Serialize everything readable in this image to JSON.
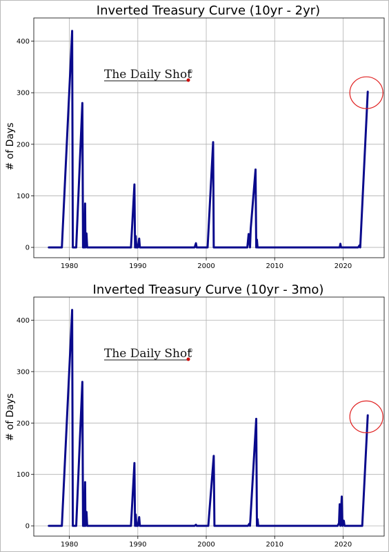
{
  "brand": {
    "logo_text": "The Daily Shot",
    "logo_mark": "®"
  },
  "colors": {
    "line": "#0a0a8c",
    "highlight": "#e02020",
    "logo_dot": "#cc0000"
  },
  "chart_data": [
    {
      "type": "line",
      "title": "Inverted Treasury Curve (10yr - 2yr)",
      "xlabel": "",
      "ylabel": "# of Days",
      "xlim": [
        1974.8,
        2026
      ],
      "ylim": [
        -20,
        445
      ],
      "xticks": [
        1980,
        1990,
        2000,
        2010,
        2020
      ],
      "yticks": [
        0,
        100,
        200,
        300,
        400
      ],
      "grid": true,
      "highlight": {
        "x": 2023.6,
        "y": 300
      },
      "series": [
        {
          "x": [
            1977,
            1978.9,
            1980.4,
            1980.5,
            1980.8,
            1981.0,
            1981.9,
            1982.0,
            1982.2,
            1982.3,
            1982.35,
            1982.5,
            1982.6,
            1982.7,
            1989.0,
            1989.5,
            1989.6,
            1989.7,
            1989.8,
            1990.0,
            1990.2,
            1990.3,
            1998.3,
            1998.5,
            1998.6,
            2000.2,
            2001.0,
            2001.1,
            2006.0,
            2006.2,
            2006.4,
            2006.5,
            2007.2,
            2007.3,
            2007.4,
            2007.5,
            2019.5,
            2019.6,
            2019.7,
            2022.2,
            2022.4,
            2022.5,
            2023.6
          ],
          "y": [
            0,
            0,
            420,
            0,
            0,
            0,
            280,
            0,
            0,
            85,
            0,
            27,
            0,
            0,
            0,
            122,
            0,
            22,
            0,
            0,
            17,
            0,
            0,
            8,
            0,
            0,
            204,
            0,
            0,
            26,
            0,
            36,
            151,
            0,
            15,
            0,
            0,
            7,
            0,
            0,
            4,
            0,
            302
          ]
        }
      ]
    },
    {
      "type": "line",
      "title": "Inverted Treasury Curve (10yr - 3mo)",
      "xlabel": "",
      "ylabel": "# of Days",
      "xlim": [
        1974.8,
        2026
      ],
      "ylim": [
        -20,
        445
      ],
      "xticks": [
        1980,
        1990,
        2000,
        2010,
        2020
      ],
      "yticks": [
        0,
        100,
        200,
        300,
        400
      ],
      "grid": true,
      "highlight": {
        "x": 2023.6,
        "y": 212
      },
      "series": [
        {
          "x": [
            1977,
            1978.9,
            1980.4,
            1980.5,
            1980.8,
            1981.0,
            1981.9,
            1982.0,
            1982.2,
            1982.3,
            1982.35,
            1982.5,
            1982.6,
            1982.7,
            1989.0,
            1989.5,
            1989.6,
            1989.7,
            1989.8,
            1990.0,
            1990.2,
            1990.3,
            1998.3,
            1998.5,
            1998.6,
            2000.3,
            2001.1,
            2001.2,
            2006.1,
            2006.3,
            2006.4,
            2007.3,
            2007.4,
            2007.5,
            2007.6,
            2007.7,
            2019.2,
            2019.4,
            2019.5,
            2019.6,
            2019.8,
            2019.9,
            2020.1,
            2020.2,
            2022.8,
            2023.6
          ],
          "y": [
            0,
            0,
            420,
            0,
            0,
            0,
            280,
            0,
            0,
            85,
            0,
            27,
            0,
            0,
            0,
            122,
            0,
            22,
            0,
            0,
            17,
            0,
            0,
            2,
            0,
            0,
            136,
            0,
            0,
            4,
            0,
            208,
            0,
            13,
            0,
            0,
            0,
            5,
            42,
            0,
            57,
            0,
            10,
            0,
            0,
            215
          ]
        }
      ]
    }
  ]
}
